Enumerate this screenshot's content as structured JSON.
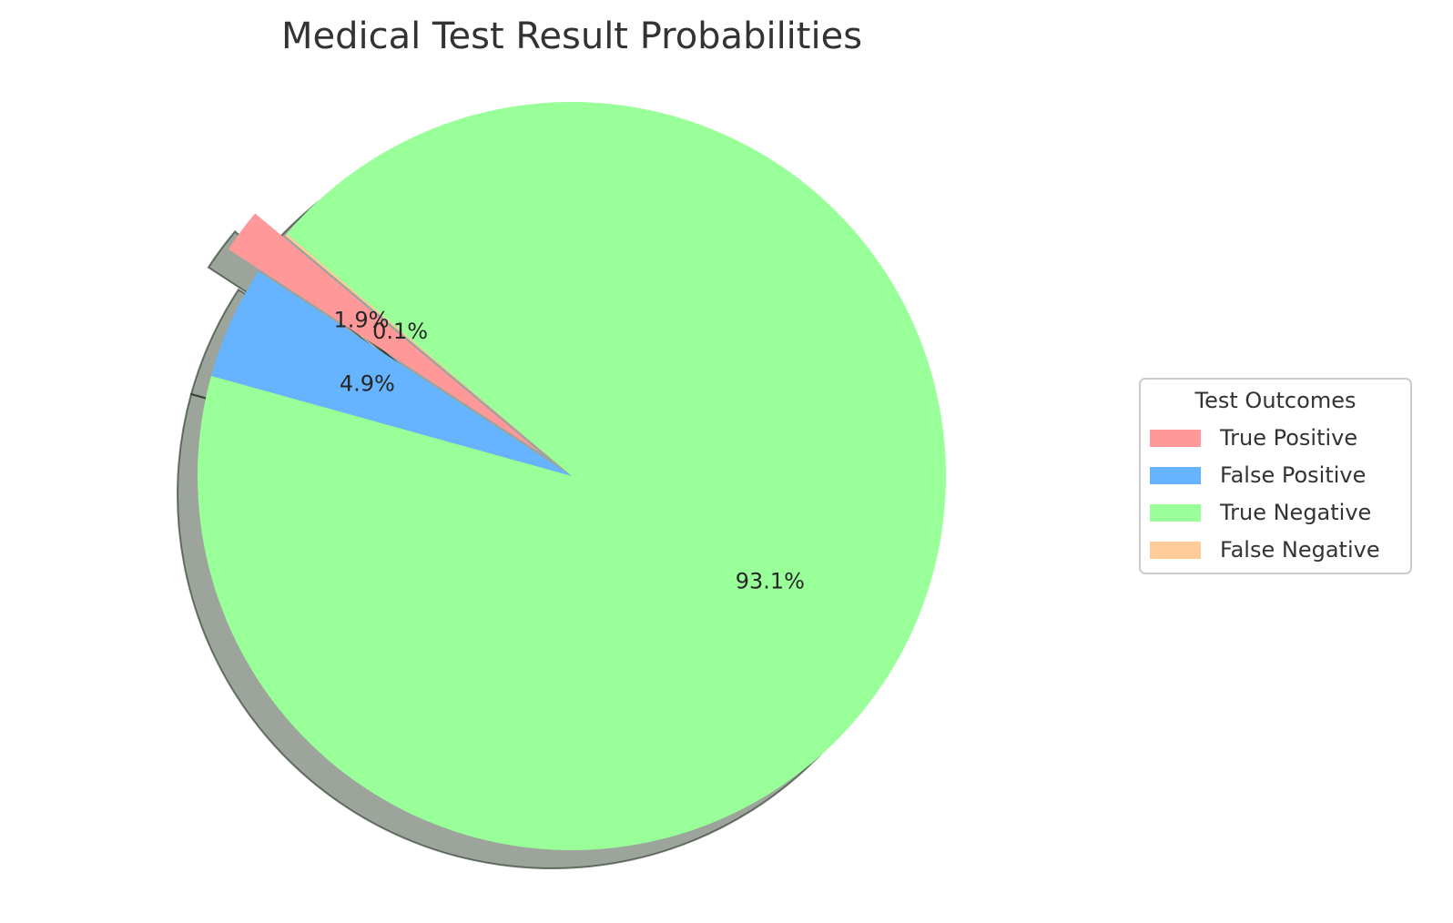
{
  "chart_data": {
    "type": "pie",
    "title": "Medical Test Result Probabilities",
    "legend_title": "Test Outcomes",
    "legend_position": "center-right",
    "start_angle_deg": 140,
    "direction": "counterclockwise",
    "shadow": true,
    "slices": [
      {
        "label": "True Positive",
        "value": 1.9,
        "pct_label": "1.9%",
        "color": "#ff9999",
        "exploded": true
      },
      {
        "label": "False Positive",
        "value": 4.9,
        "pct_label": "4.9%",
        "color": "#66b3ff",
        "exploded": false
      },
      {
        "label": "True Negative",
        "value": 93.1,
        "pct_label": "93.1%",
        "color": "#99ff99",
        "exploded": false
      },
      {
        "label": "False Negative",
        "value": 0.1,
        "pct_label": "0.1%",
        "color": "#ffcc99",
        "exploded": false
      }
    ]
  }
}
